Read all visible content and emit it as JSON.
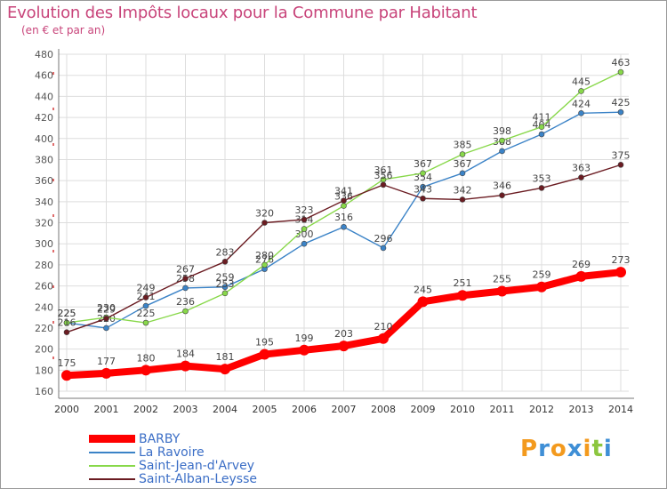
{
  "header": {
    "title": "Evolution des Impôts locaux pour la Commune par Habitant",
    "subtitle": "(en € et par an)"
  },
  "logo": {
    "text": "Proxiti"
  },
  "chart_data": {
    "type": "line",
    "title": "Evolution des Impôts locaux pour la Commune par Habitant",
    "subtitle": "(en € et par an)",
    "x": [
      "2000",
      "2001",
      "2002",
      "2003",
      "2004",
      "2005",
      "2006",
      "2007",
      "2008",
      "2009",
      "2010",
      "2011",
      "2012",
      "2013",
      "2014"
    ],
    "ylim": [
      160,
      480
    ],
    "yticks": [
      160,
      180,
      200,
      220,
      240,
      260,
      280,
      300,
      320,
      340,
      360,
      380,
      400,
      420,
      440,
      460,
      480
    ],
    "grid": true,
    "legend_position": "bottom-left",
    "series": [
      {
        "name": "BARBY",
        "color": "#ff0000",
        "values": [
          175,
          177,
          180,
          184,
          181,
          195,
          199,
          203,
          210,
          245,
          251,
          255,
          259,
          269,
          273
        ]
      },
      {
        "name": "La Ravoire",
        "color": "#3b83c7",
        "values": [
          225,
          220,
          241,
          258,
          259,
          276,
          300,
          316,
          296,
          354,
          367,
          388,
          404,
          424,
          425
        ]
      },
      {
        "name": "Saint-Jean-d'Arvey",
        "color": "#88d84a",
        "values": [
          225,
          230,
          225,
          236,
          253,
          280,
          314,
          336,
          361,
          367,
          385,
          398,
          411,
          445,
          463
        ]
      },
      {
        "name": "Saint-Alban-Leysse",
        "color": "#6b1c22",
        "values": [
          216,
          229,
          249,
          267,
          283,
          320,
          323,
          341,
          356,
          343,
          342,
          346,
          353,
          363,
          375
        ]
      }
    ]
  }
}
